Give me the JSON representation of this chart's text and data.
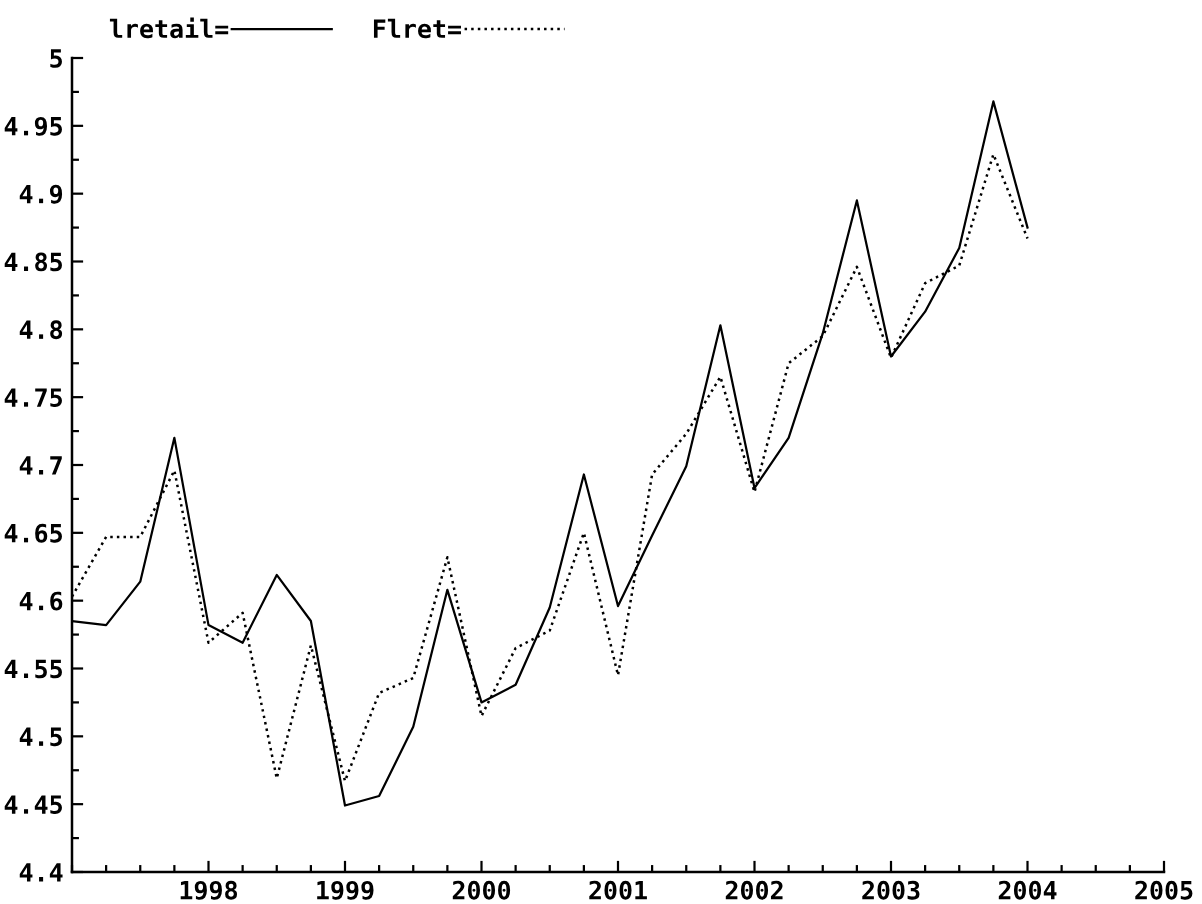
{
  "chart_data": {
    "type": "line",
    "x": [
      1997,
      1997.25,
      1997.5,
      1997.75,
      1998,
      1998.25,
      1998.5,
      1998.75,
      1999,
      1999.25,
      1999.5,
      1999.75,
      2000,
      2000.25,
      2000.5,
      2000.75,
      2001,
      2001.25,
      2001.5,
      2001.75,
      2002,
      2002.25,
      2002.5,
      2002.75,
      2003,
      2003.25,
      2003.5,
      2003.75,
      2004
    ],
    "series": [
      {
        "name": "lretail=",
        "color": "#000000",
        "line_style": "solid",
        "values": [
          4.585,
          4.582,
          4.614,
          4.72,
          4.582,
          4.569,
          4.619,
          4.585,
          4.449,
          4.456,
          4.507,
          4.608,
          4.525,
          4.538,
          4.595,
          4.693,
          4.596,
          4.648,
          4.699,
          4.803,
          4.683,
          4.72,
          4.797,
          4.895,
          4.78,
          4.813,
          4.86,
          4.968,
          4.875
        ]
      },
      {
        "name": "Flret=",
        "color": "#000000",
        "line_style": "dotted",
        "values": [
          4.603,
          4.647,
          4.647,
          4.696,
          4.569,
          4.591,
          4.469,
          4.567,
          4.467,
          4.532,
          4.543,
          4.632,
          4.515,
          4.565,
          4.578,
          4.65,
          4.545,
          4.693,
          4.723,
          4.765,
          4.68,
          4.775,
          4.795,
          4.846,
          4.779,
          4.834,
          4.847,
          4.929,
          4.867
        ]
      }
    ],
    "xlim": [
      1997,
      2005
    ],
    "xticks": [
      1998,
      1999,
      2000,
      2001,
      2002,
      2003,
      2004,
      2005
    ],
    "ylim": [
      4.4,
      5
    ],
    "yticks": [
      4.4,
      4.45,
      4.5,
      4.55,
      4.6,
      4.65,
      4.7,
      4.75,
      4.8,
      4.85,
      4.9,
      4.95,
      5
    ],
    "legend": "top left"
  }
}
